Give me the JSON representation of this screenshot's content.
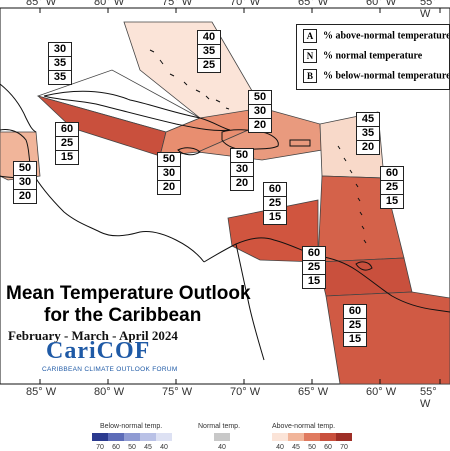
{
  "title": {
    "line1": "Mean Temperature Outlook",
    "line2": "for the Caribbean",
    "period": "February - March - April 2024"
  },
  "logo": {
    "name": "CariCOF",
    "subtitle": "CARIBBEAN CLIMATE OUTLOOK FORUM"
  },
  "longitudes_top": [
    "85° W",
    "80° W",
    "75° W",
    "70° W",
    "65° W",
    "60° W",
    "55° W"
  ],
  "longitudes_bottom": [
    "85° W",
    "80° W",
    "75° W",
    "70° W",
    "65° W",
    "60° W",
    "55° W"
  ],
  "key": [
    {
      "letter": "A",
      "text": "% above-normal temperature"
    },
    {
      "letter": "N",
      "text": "% normal temperature"
    },
    {
      "letter": "B",
      "text": "% below-normal temperature"
    }
  ],
  "colors": {
    "land": "#ffffff",
    "coast": "#111111",
    "a40": "#f8d9c9",
    "a45": "#f1b59a",
    "a50": "#e88e70",
    "a60": "#d4624a",
    "a70": "#b8382b"
  },
  "regions": [
    {
      "id": "bahamas",
      "values": [
        "40",
        "35",
        "25"
      ],
      "color": "#fbe4d8"
    },
    {
      "id": "cuba-west",
      "values": [
        "30",
        "35",
        "35"
      ],
      "color": "#ffffff"
    },
    {
      "id": "cuba-cayman",
      "values": [
        "60",
        "25",
        "15"
      ],
      "color": "#c9503d"
    },
    {
      "id": "jamaica",
      "values": [
        "50",
        "30",
        "20"
      ],
      "color": "#e88e70"
    },
    {
      "id": "hispaniola",
      "values": [
        "50",
        "30",
        "20"
      ],
      "color": "#e99a7e"
    },
    {
      "id": "turks",
      "values": [
        "50",
        "30",
        "20"
      ],
      "color": "#f6cdb9"
    },
    {
      "id": "belize-east",
      "values": [
        "50",
        "30",
        "20"
      ],
      "color": "#f1b59a"
    },
    {
      "id": "leeward",
      "values": [
        "45",
        "35",
        "20"
      ],
      "color": "#f8d9c9"
    },
    {
      "id": "windward",
      "values": [
        "60",
        "25",
        "15"
      ],
      "color": "#d4624a"
    },
    {
      "id": "abc",
      "values": [
        "60",
        "25",
        "15"
      ],
      "color": "#d0553f"
    },
    {
      "id": "trinidad",
      "values": [
        "60",
        "25",
        "15"
      ],
      "color": "#c9503d"
    },
    {
      "id": "guianas",
      "values": [
        "60",
        "25",
        "15"
      ],
      "color": "#d05a44"
    }
  ],
  "colorbar": {
    "below_label": "Below-normal temp.",
    "normal_label": "Normal temp.",
    "above_label": "Above-normal temp.",
    "below_ticks": [
      "70",
      "60",
      "50",
      "45",
      "40"
    ],
    "normal_ticks": [
      "40"
    ],
    "above_ticks": [
      "40",
      "45",
      "50",
      "60",
      "70"
    ],
    "below_colors": [
      "#2b3a8f",
      "#5d6cb8",
      "#8f9bd3",
      "#b9c1e6",
      "#dde1f3"
    ],
    "normal_colors": [
      "#c8c8c8"
    ],
    "above_colors": [
      "#fbe4d8",
      "#f1b59a",
      "#e07a5f",
      "#c9503d",
      "#9e2f27"
    ]
  }
}
